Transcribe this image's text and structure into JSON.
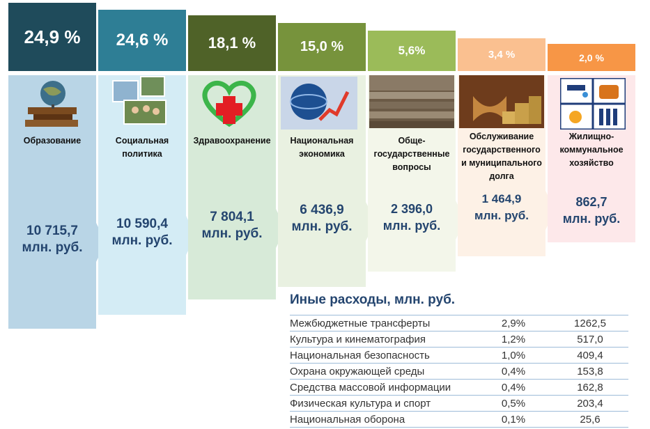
{
  "chart_data": {
    "type": "bar",
    "categories": [
      {
        "lines": [
          "Образование"
        ]
      },
      {
        "lines": [
          "Социальная",
          "политика"
        ]
      },
      {
        "lines": [
          "Здравоохранение"
        ]
      },
      {
        "lines": [
          "Национальная",
          "экономика"
        ]
      },
      {
        "lines": [
          "Обще-",
          "государственные",
          "вопросы"
        ]
      },
      {
        "lines": [
          "Обслуживание",
          "государственного",
          "и муниципального",
          "долга"
        ]
      },
      {
        "lines": [
          "Жилищно-",
          "коммунальное",
          "хозяйство"
        ]
      }
    ],
    "shares": [
      {
        "label": "24,9 %",
        "value": 24.9
      },
      {
        "label": "24,6 %",
        "value": 24.6
      },
      {
        "label": "18,1 %",
        "value": 18.1
      },
      {
        "label": "15,0 %",
        "value": 15.0
      },
      {
        "label": "5,6%",
        "value": 5.6
      },
      {
        "label": "3,4 %",
        "value": 3.4
      },
      {
        "label": "2,0 %",
        "value": 2.0
      }
    ],
    "amounts": [
      {
        "value": "10 715,7",
        "unit": "млн. руб."
      },
      {
        "value": "10 590,4",
        "unit": "млн. руб."
      },
      {
        "value": "7 804,1",
        "unit": "млн. руб."
      },
      {
        "value": "6 436,9",
        "unit": "млн. руб."
      },
      {
        "value": "2 396,0",
        "unit": "млн. руб."
      },
      {
        "value": "1 464,9",
        "unit": "млн. руб."
      },
      {
        "value": "862,7",
        "unit": "млн. руб."
      }
    ],
    "colors": [
      {
        "head": "#1f4b5b",
        "body": "#b9d5e6"
      },
      {
        "head": "#2e7e95",
        "body": "#d4ecf5"
      },
      {
        "head": "#4f6228",
        "body": "#d7ead8"
      },
      {
        "head": "#77933c",
        "body": "#e9f1e1"
      },
      {
        "head": "#9bbb59",
        "body": "#f3f6ea"
      },
      {
        "head": "#fac090",
        "body": "#fdf1e6"
      },
      {
        "head": "#f79646",
        "body": "#fde8ea"
      }
    ],
    "icons": [
      "globe-books-icon",
      "family-photos-icon",
      "heart-cross-icon",
      "globe-growth-icon",
      "parliament-hall-icon",
      "coins-hourglass-icon",
      "utilities-icon"
    ]
  },
  "other": {
    "title": "Иные расходы, млн. руб.",
    "rows": [
      {
        "name": "Межбюджетные трансферты",
        "pct": "2,9%",
        "amount": "1262,5"
      },
      {
        "name": "Культура и кинематография",
        "pct": "1,2%",
        "amount": "517,0"
      },
      {
        "name": "Национальная безопасность",
        "pct": "1,0%",
        "amount": "409,4"
      },
      {
        "name": "Охрана окружающей среды",
        "pct": "0,4%",
        "amount": "153,8"
      },
      {
        "name": "Средства массовой информации",
        "pct": "0,4%",
        "amount": "162,8"
      },
      {
        "name": "Физическая культура и спорт",
        "pct": "0,5%",
        "amount": "203,4"
      },
      {
        "name": "Национальная оборона",
        "pct": "0,1%",
        "amount": "25,6"
      }
    ]
  }
}
